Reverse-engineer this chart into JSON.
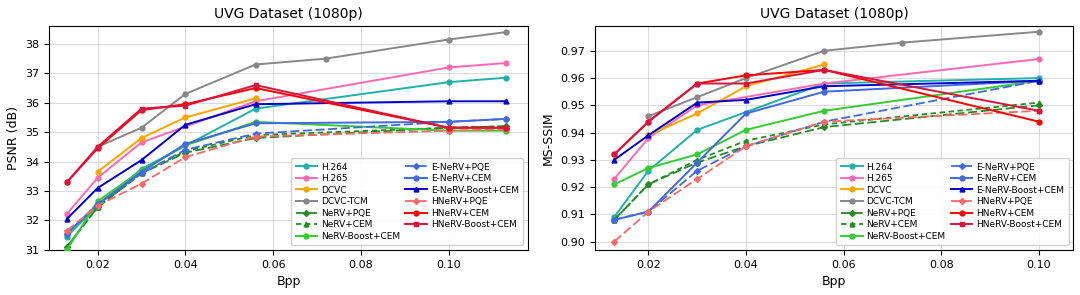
{
  "title": "UVG Dataset (1080p)",
  "left": {
    "ylabel": "PSNR (dB)",
    "xlabel": "Bpp",
    "ylim": [
      31.0,
      38.6
    ],
    "xlim": [
      0.009,
      0.118
    ],
    "xticks": [
      0.02,
      0.04,
      0.06,
      0.08,
      0.1
    ],
    "series": {
      "H.264": {
        "x": [
          0.013,
          0.02,
          0.03,
          0.056,
          0.1,
          0.113
        ],
        "y": [
          31.45,
          32.5,
          33.75,
          35.8,
          36.7,
          36.85
        ],
        "color": "#20B2AA",
        "ls": "-",
        "marker": "o",
        "ms": 3.5,
        "lw": 1.4,
        "dashes": null
      },
      "H.265": {
        "x": [
          0.013,
          0.02,
          0.03,
          0.056,
          0.1,
          0.113
        ],
        "y": [
          32.22,
          33.45,
          34.65,
          36.05,
          37.2,
          37.35
        ],
        "color": "#FF69B4",
        "ls": "-",
        "marker": "o",
        "ms": 3.5,
        "lw": 1.4,
        "dashes": null
      },
      "DCVC": {
        "x": [
          0.02,
          0.03,
          0.04,
          0.056
        ],
        "y": [
          33.65,
          34.8,
          35.5,
          36.15
        ],
        "color": "#FFA500",
        "ls": "-",
        "marker": "o",
        "ms": 3.5,
        "lw": 1.4,
        "dashes": null
      },
      "DCVC-TCM": {
        "x": [
          0.02,
          0.03,
          0.04,
          0.056,
          0.072,
          0.1,
          0.113
        ],
        "y": [
          34.5,
          35.15,
          36.3,
          37.3,
          37.5,
          38.15,
          38.4
        ],
        "color": "#888888",
        "ls": "-",
        "marker": "o",
        "ms": 3.5,
        "lw": 1.4,
        "dashes": null
      },
      "NeRV+PQE": {
        "x": [
          0.013,
          0.02,
          0.03,
          0.04,
          0.056,
          0.1,
          0.113
        ],
        "y": [
          31.1,
          32.45,
          33.6,
          34.3,
          34.8,
          35.15,
          35.2
        ],
        "color": "#228B22",
        "ls": "--",
        "marker": "D",
        "ms": 3.0,
        "lw": 1.3,
        "dashes": [
          5,
          2
        ]
      },
      "NeRV+CEM": {
        "x": [
          0.013,
          0.02,
          0.03,
          0.04,
          0.056,
          0.1,
          0.113
        ],
        "y": [
          31.1,
          32.45,
          33.6,
          34.35,
          34.9,
          35.15,
          35.2
        ],
        "color": "#228B22",
        "ls": "--",
        "marker": "^",
        "ms": 3.5,
        "lw": 1.3,
        "dashes": [
          3,
          2
        ]
      },
      "NeRV-Boost+CEM": {
        "x": [
          0.013,
          0.02,
          0.03,
          0.04,
          0.056,
          0.1,
          0.113
        ],
        "y": [
          31.0,
          32.65,
          33.7,
          34.55,
          35.35,
          35.05,
          35.05
        ],
        "color": "#32CD32",
        "ls": "-",
        "marker": "o",
        "ms": 3.5,
        "lw": 1.4,
        "dashes": null
      },
      "E-NeRV+PQE": {
        "x": [
          0.013,
          0.02,
          0.03,
          0.04,
          0.056,
          0.1,
          0.113
        ],
        "y": [
          31.55,
          32.55,
          33.6,
          34.4,
          34.95,
          35.35,
          35.45
        ],
        "color": "#4169E1",
        "ls": "--",
        "marker": "D",
        "ms": 3.0,
        "lw": 1.3,
        "dashes": [
          5,
          2
        ]
      },
      "E-NeRV+CEM": {
        "x": [
          0.013,
          0.02,
          0.03,
          0.04,
          0.056,
          0.1,
          0.113
        ],
        "y": [
          31.55,
          32.55,
          33.65,
          34.6,
          35.3,
          35.35,
          35.45
        ],
        "color": "#4169E1",
        "ls": "-",
        "marker": "o",
        "ms": 3.5,
        "lw": 1.4,
        "dashes": null
      },
      "E-NeRV-Boost+CEM": {
        "x": [
          0.013,
          0.02,
          0.03,
          0.04,
          0.056,
          0.1,
          0.113
        ],
        "y": [
          32.05,
          33.1,
          34.05,
          35.25,
          35.95,
          36.05,
          36.05
        ],
        "color": "#0000CD",
        "ls": "-",
        "marker": "^",
        "ms": 3.5,
        "lw": 1.4,
        "dashes": null
      },
      "HNeRV+PQE": {
        "x": [
          0.013,
          0.02,
          0.03,
          0.04,
          0.056,
          0.1,
          0.113
        ],
        "y": [
          31.65,
          32.5,
          33.25,
          34.15,
          34.85,
          35.05,
          35.1
        ],
        "color": "#FF6666",
        "ls": "--",
        "marker": "D",
        "ms": 3.0,
        "lw": 1.3,
        "dashes": [
          5,
          2
        ]
      },
      "HNeRV+CEM": {
        "x": [
          0.013,
          0.02,
          0.03,
          0.04,
          0.056,
          0.1,
          0.113
        ],
        "y": [
          33.3,
          34.45,
          35.75,
          35.95,
          36.5,
          35.15,
          35.15
        ],
        "color": "#FF0000",
        "ls": "-",
        "marker": "o",
        "ms": 3.5,
        "lw": 1.4,
        "dashes": null
      },
      "HNeRV-Boost+CEM": {
        "x": [
          0.013,
          0.02,
          0.03,
          0.04,
          0.056,
          0.1,
          0.113
        ],
        "y": [
          33.3,
          34.5,
          35.8,
          35.9,
          36.6,
          35.15,
          35.15
        ],
        "color": "#DC143C",
        "ls": "-",
        "marker": "s",
        "ms": 3.5,
        "lw": 1.4,
        "dashes": null
      }
    }
  },
  "right": {
    "ylabel": "MS-SSIM",
    "xlabel": "Bpp",
    "ylim": [
      0.897,
      0.979
    ],
    "xlim": [
      0.009,
      0.107
    ],
    "xticks": [
      0.02,
      0.04,
      0.06,
      0.08,
      0.1
    ],
    "series": {
      "H.264": {
        "x": [
          0.013,
          0.02,
          0.03,
          0.056,
          0.1
        ],
        "y": [
          0.909,
          0.926,
          0.941,
          0.958,
          0.96
        ],
        "color": "#20B2AA",
        "ls": "-",
        "marker": "o",
        "ms": 3.5,
        "lw": 1.4,
        "dashes": null
      },
      "H.265": {
        "x": [
          0.013,
          0.02,
          0.03,
          0.056,
          0.1
        ],
        "y": [
          0.923,
          0.938,
          0.95,
          0.958,
          0.967
        ],
        "color": "#FF69B4",
        "ls": "-",
        "marker": "o",
        "ms": 3.5,
        "lw": 1.4,
        "dashes": null
      },
      "DCVC": {
        "x": [
          0.02,
          0.03,
          0.04,
          0.056
        ],
        "y": [
          0.939,
          0.947,
          0.957,
          0.965
        ],
        "color": "#FFA500",
        "ls": "-",
        "marker": "o",
        "ms": 3.5,
        "lw": 1.4,
        "dashes": null
      },
      "DCVC-TCM": {
        "x": [
          0.02,
          0.03,
          0.04,
          0.056,
          0.072,
          0.1
        ],
        "y": [
          0.946,
          0.953,
          0.96,
          0.97,
          0.973,
          0.977
        ],
        "color": "#888888",
        "ls": "-",
        "marker": "o",
        "ms": 3.5,
        "lw": 1.4,
        "dashes": null
      },
      "NeRV+PQE": {
        "x": [
          0.013,
          0.02,
          0.03,
          0.04,
          0.056,
          0.1
        ],
        "y": [
          0.908,
          0.921,
          0.929,
          0.935,
          0.942,
          0.95
        ],
        "color": "#228B22",
        "ls": "--",
        "marker": "D",
        "ms": 3.0,
        "lw": 1.3,
        "dashes": [
          5,
          2
        ]
      },
      "NeRV+CEM": {
        "x": [
          0.013,
          0.02,
          0.03,
          0.04,
          0.056,
          0.1
        ],
        "y": [
          0.908,
          0.921,
          0.93,
          0.937,
          0.943,
          0.951
        ],
        "color": "#228B22",
        "ls": "--",
        "marker": "^",
        "ms": 3.5,
        "lw": 1.3,
        "dashes": [
          3,
          2
        ]
      },
      "NeRV-Boost+CEM": {
        "x": [
          0.013,
          0.02,
          0.03,
          0.04,
          0.056,
          0.1
        ],
        "y": [
          0.921,
          0.927,
          0.932,
          0.941,
          0.948,
          0.959
        ],
        "color": "#32CD32",
        "ls": "-",
        "marker": "o",
        "ms": 3.5,
        "lw": 1.4,
        "dashes": null
      },
      "E-NeRV+PQE": {
        "x": [
          0.013,
          0.02,
          0.03,
          0.04,
          0.056,
          0.1
        ],
        "y": [
          0.908,
          0.911,
          0.926,
          0.935,
          0.944,
          0.959
        ],
        "color": "#4169E1",
        "ls": "--",
        "marker": "D",
        "ms": 3.0,
        "lw": 1.3,
        "dashes": [
          5,
          2
        ]
      },
      "E-NeRV+CEM": {
        "x": [
          0.013,
          0.02,
          0.03,
          0.04,
          0.056,
          0.1
        ],
        "y": [
          0.908,
          0.911,
          0.929,
          0.947,
          0.955,
          0.959
        ],
        "color": "#4169E1",
        "ls": "-",
        "marker": "o",
        "ms": 3.5,
        "lw": 1.4,
        "dashes": null
      },
      "E-NeRV-Boost+CEM": {
        "x": [
          0.013,
          0.02,
          0.03,
          0.04,
          0.056,
          0.1
        ],
        "y": [
          0.93,
          0.939,
          0.951,
          0.952,
          0.957,
          0.959
        ],
        "color": "#0000CD",
        "ls": "-",
        "marker": "^",
        "ms": 3.5,
        "lw": 1.4,
        "dashes": null
      },
      "HNeRV+PQE": {
        "x": [
          0.013,
          0.02,
          0.03,
          0.04,
          0.056,
          0.1
        ],
        "y": [
          0.9,
          0.911,
          0.923,
          0.935,
          0.944,
          0.948
        ],
        "color": "#FF6666",
        "ls": "--",
        "marker": "D",
        "ms": 3.0,
        "lw": 1.3,
        "dashes": [
          5,
          2
        ]
      },
      "HNeRV+CEM": {
        "x": [
          0.013,
          0.02,
          0.03,
          0.04,
          0.056,
          0.1
        ],
        "y": [
          0.932,
          0.944,
          0.958,
          0.961,
          0.963,
          0.944
        ],
        "color": "#FF0000",
        "ls": "-",
        "marker": "o",
        "ms": 3.5,
        "lw": 1.4,
        "dashes": null
      },
      "HNeRV-Boost+CEM": {
        "x": [
          0.013,
          0.02,
          0.03,
          0.04,
          0.056,
          0.1
        ],
        "y": [
          0.932,
          0.944,
          0.958,
          0.958,
          0.963,
          0.948
        ],
        "color": "#DC143C",
        "ls": "-",
        "marker": "s",
        "ms": 3.5,
        "lw": 1.4,
        "dashes": null
      }
    }
  },
  "legend_col1": [
    "H.264",
    "H.265",
    "DCVC",
    "DCVC-TCM",
    "NeRV+PQE",
    "NeRV+CEM",
    "NeRV-Boost+CEM"
  ],
  "legend_col2": [
    "E-NeRV+PQE",
    "E-NeRV+CEM",
    "E-NeRV-Boost+CEM",
    "HNeRV+PQE",
    "HNeRV+CEM",
    "HNeRV-Boost+CEM"
  ]
}
